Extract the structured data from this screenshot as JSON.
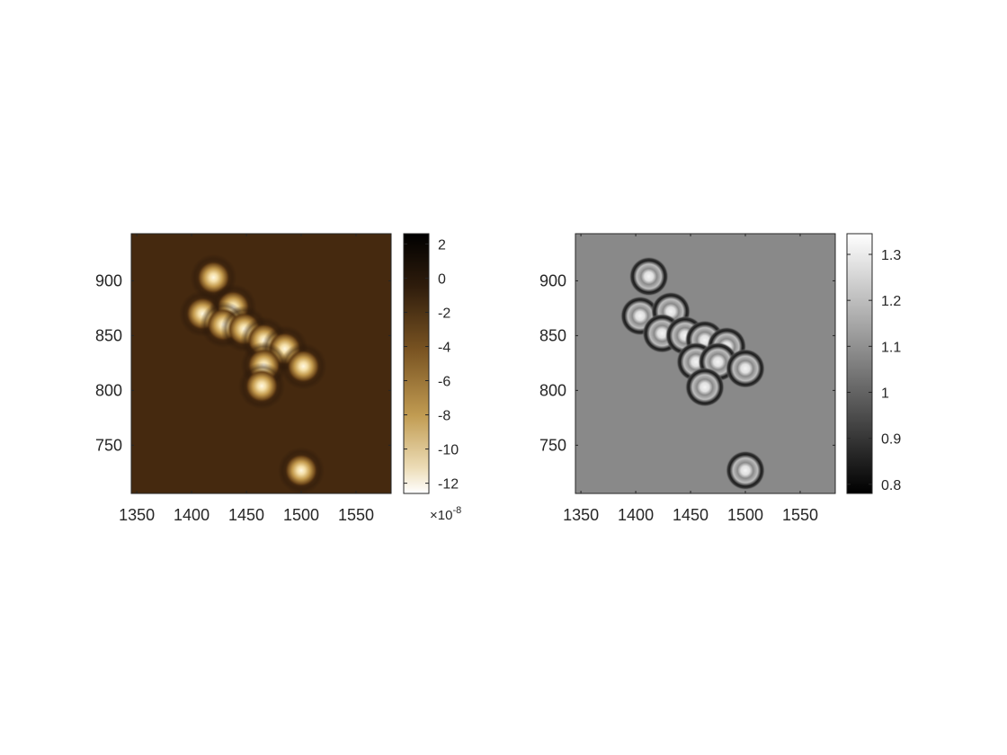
{
  "chart_data": [
    {
      "type": "heatmap",
      "title": "",
      "xlabel": "",
      "ylabel": "",
      "xlim": [
        1345,
        1582
      ],
      "ylim": [
        706,
        943
      ],
      "xticks": [
        1350,
        1400,
        1450,
        1500,
        1550
      ],
      "yticks": [
        750,
        800,
        850,
        900
      ],
      "colormap": "copper-reversed",
      "colors": {
        "low": "#ffffff",
        "mid": "#b88d3c",
        "high": "#000000",
        "background": "#45290f"
      },
      "colorbar": {
        "range": [
          -12.6,
          2.6
        ],
        "ticks": [
          2,
          0,
          -2,
          -4,
          -6,
          -8,
          -10,
          -12
        ],
        "exponent_label": "×10",
        "exponent": "-8"
      },
      "spots": [
        {
          "x": 1420,
          "y": 903,
          "value": -12
        },
        {
          "x": 1410,
          "y": 870,
          "value": -12
        },
        {
          "x": 1438,
          "y": 876,
          "value": -11.5
        },
        {
          "x": 1429,
          "y": 860,
          "value": -11.5
        },
        {
          "x": 1448,
          "y": 856,
          "value": -11.5
        },
        {
          "x": 1466,
          "y": 846,
          "value": -11
        },
        {
          "x": 1485,
          "y": 838,
          "value": -11
        },
        {
          "x": 1466,
          "y": 823,
          "value": -11
        },
        {
          "x": 1502,
          "y": 822,
          "value": -11
        },
        {
          "x": 1464,
          "y": 804,
          "value": -11.5
        },
        {
          "x": 1500,
          "y": 727,
          "value": -12
        }
      ]
    },
    {
      "type": "heatmap",
      "title": "",
      "xlabel": "",
      "ylabel": "",
      "xlim": [
        1345,
        1582
      ],
      "ylim": [
        706,
        943
      ],
      "xticks": [
        1350,
        1400,
        1450,
        1500,
        1550
      ],
      "yticks": [
        750,
        800,
        850,
        900
      ],
      "colormap": "gray",
      "colors": {
        "low": "#000000",
        "high": "#ffffff",
        "background": "#898989"
      },
      "colorbar": {
        "range": [
          0.78,
          1.345
        ],
        "ticks": [
          1.3,
          1.2,
          1.1,
          1,
          0.9,
          0.8
        ]
      },
      "spots": [
        {
          "x": 1412,
          "y": 904
        },
        {
          "x": 1404,
          "y": 868
        },
        {
          "x": 1432,
          "y": 872
        },
        {
          "x": 1424,
          "y": 852
        },
        {
          "x": 1445,
          "y": 850
        },
        {
          "x": 1463,
          "y": 846
        },
        {
          "x": 1483,
          "y": 840
        },
        {
          "x": 1455,
          "y": 826
        },
        {
          "x": 1475,
          "y": 826
        },
        {
          "x": 1500,
          "y": 820
        },
        {
          "x": 1463,
          "y": 803
        },
        {
          "x": 1500,
          "y": 727
        }
      ]
    }
  ]
}
